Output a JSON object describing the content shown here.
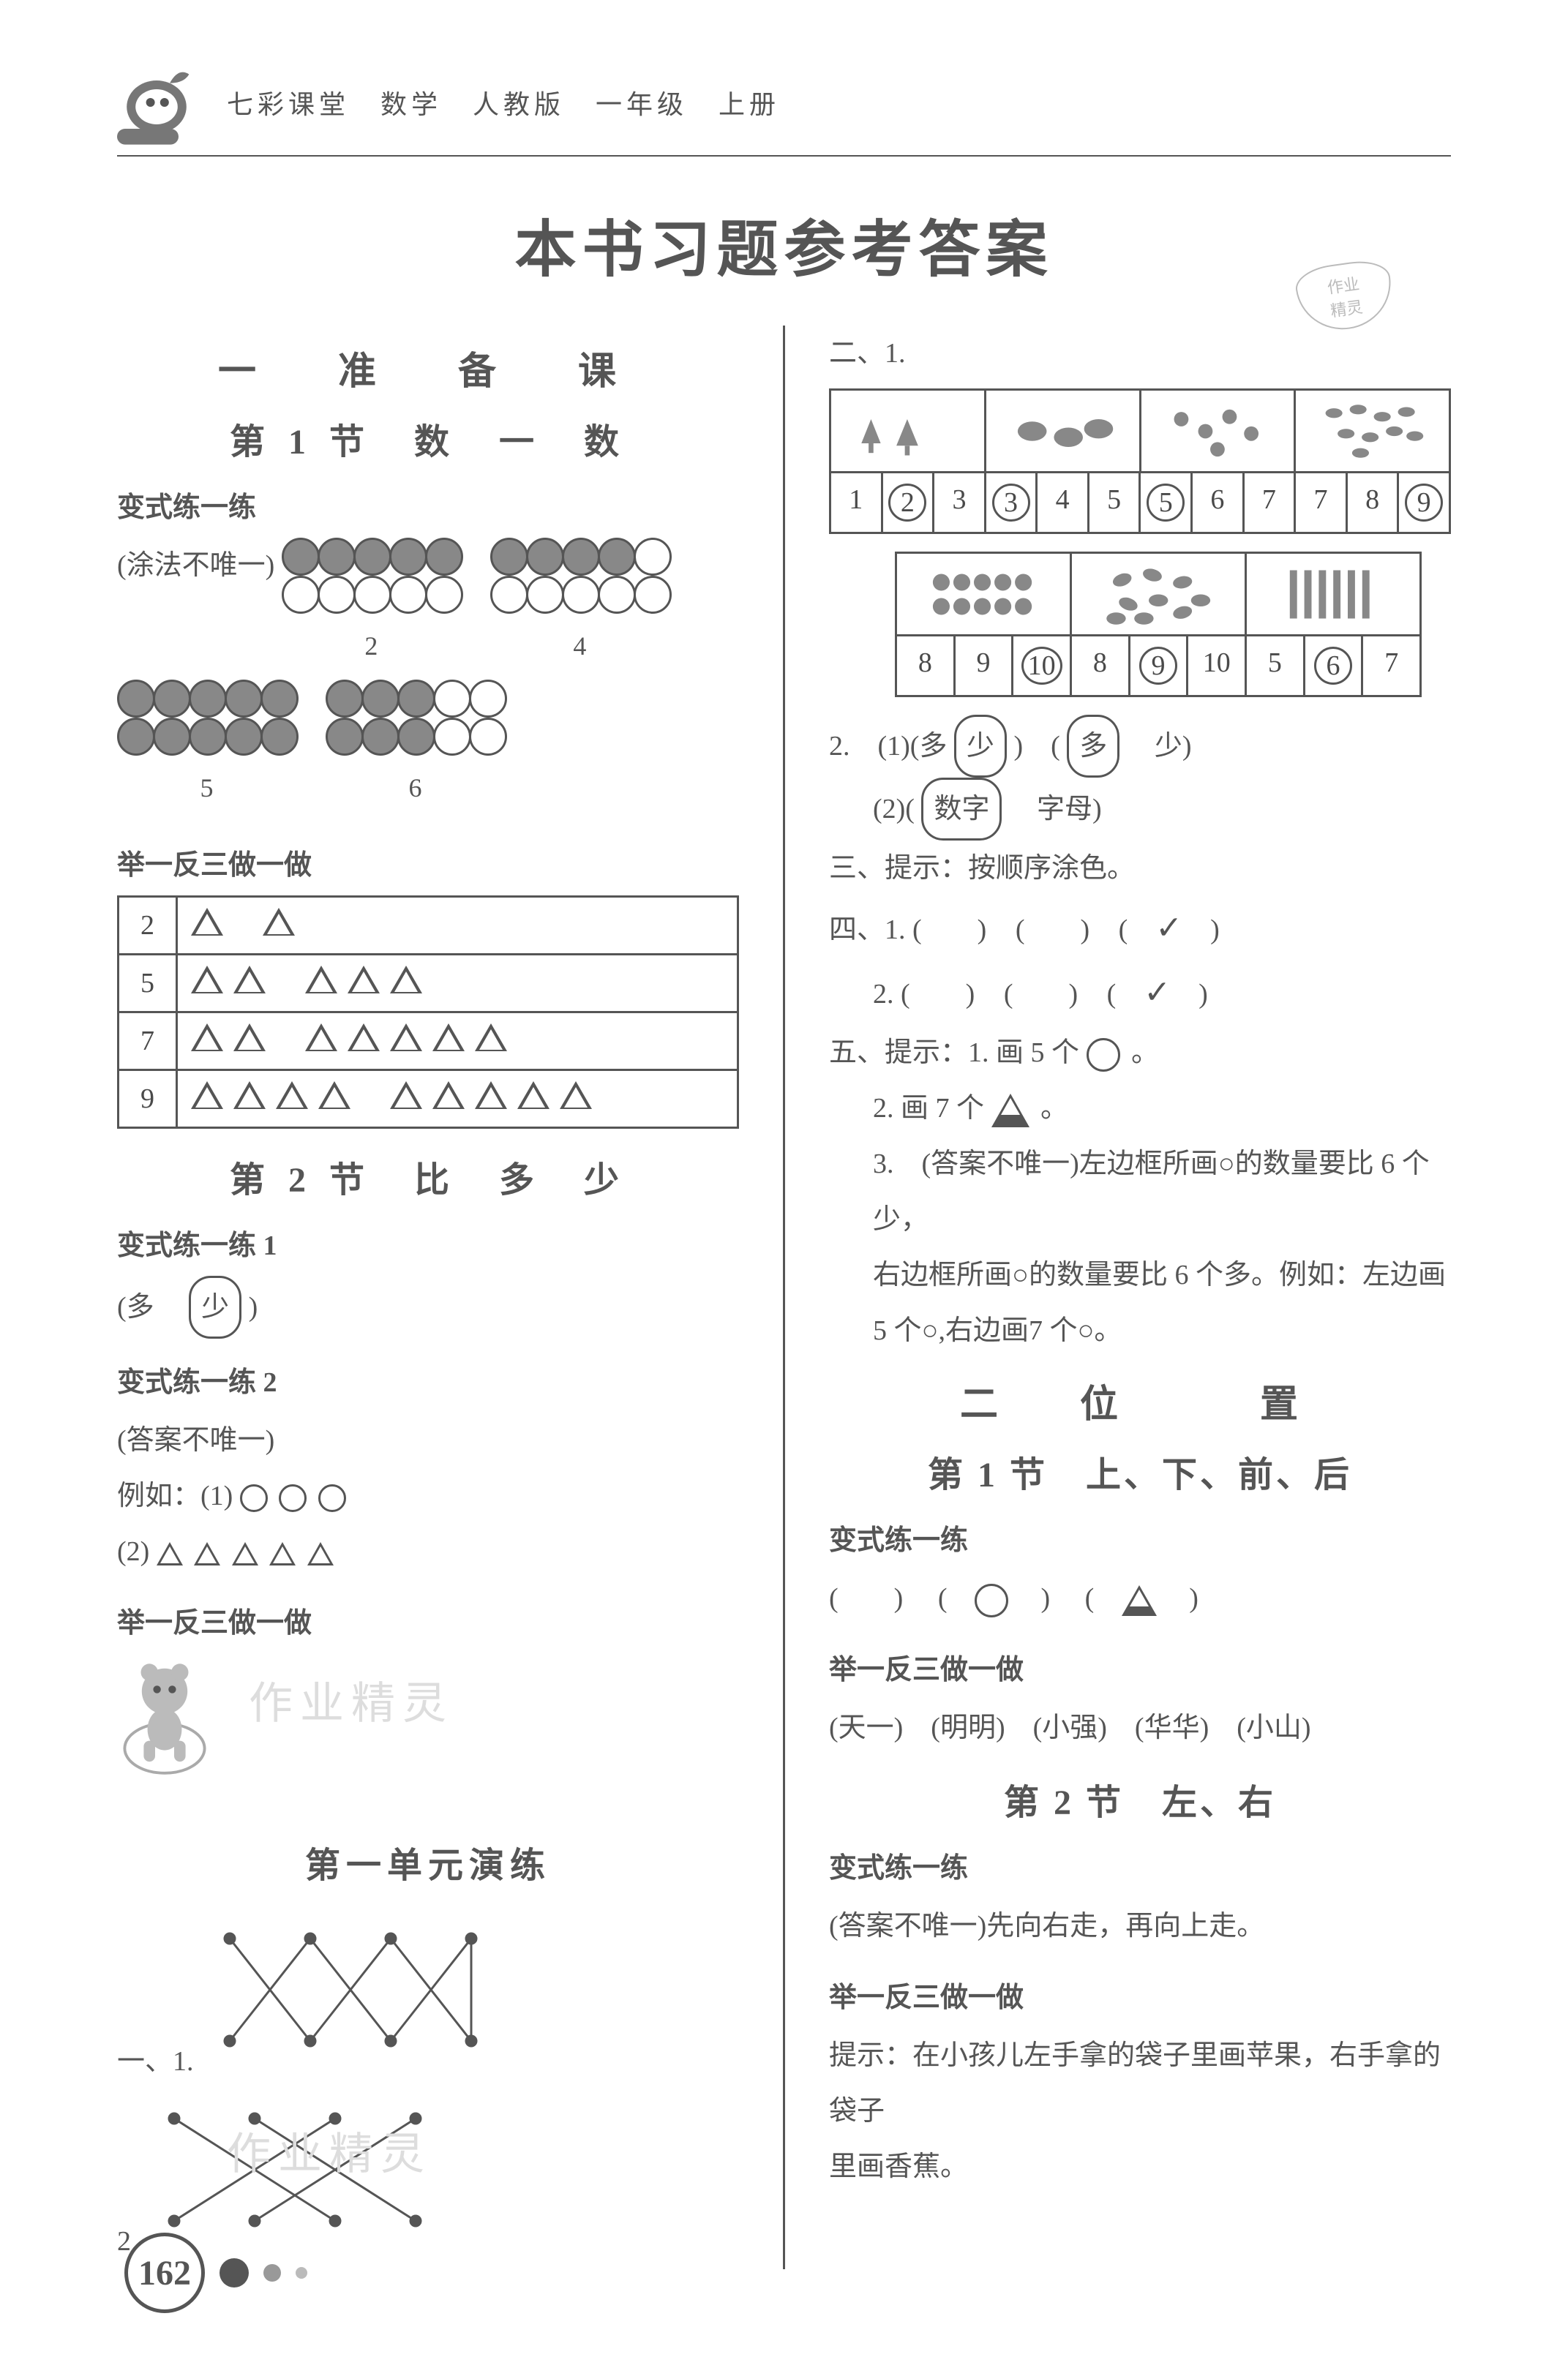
{
  "header": {
    "series": "七彩课堂　数学　人教版　一年级　上册"
  },
  "main_title": "本书习题参考答案",
  "stamp": {
    "line1": "作业",
    "line2": "精灵"
  },
  "left": {
    "chapter1": "一　准　备　课",
    "sec1": "第 1 节　数　一　数",
    "bianshi": "变式练一练",
    "tufa": "(涂法不唯一)",
    "circle_groups": [
      {
        "pattern": [
          [
            1,
            1,
            1,
            1,
            1
          ],
          [
            0,
            0,
            0,
            0,
            0
          ]
        ],
        "label": "2"
      },
      {
        "pattern": [
          [
            1,
            1,
            1,
            1,
            0
          ],
          [
            0,
            0,
            0,
            0,
            0
          ]
        ],
        "label": "4"
      },
      {
        "pattern": [
          [
            1,
            1,
            1,
            1,
            1
          ],
          [
            1,
            1,
            1,
            1,
            1
          ]
        ],
        "label": "5"
      },
      {
        "pattern": [
          [
            1,
            1,
            1,
            0,
            0
          ],
          [
            1,
            1,
            1,
            0,
            0
          ]
        ],
        "label": "6"
      }
    ],
    "juyi": "举一反三做一做",
    "tri_rows": [
      {
        "n": "2",
        "groups": [
          1,
          1
        ]
      },
      {
        "n": "5",
        "groups": [
          2,
          3
        ]
      },
      {
        "n": "7",
        "groups": [
          2,
          5
        ]
      },
      {
        "n": "9",
        "groups": [
          4,
          5
        ]
      }
    ],
    "sec2": "第 2 节　比　多　少",
    "bianshi1": "变式练一练 1",
    "duoshao": "(多　",
    "shao_circled": "少",
    "close_paren": ")",
    "bianshi2": "变式练一练 2",
    "ans_not_unique": "(答案不唯一)",
    "liru": "例如：(1)",
    "liru2": "(2)",
    "juyi2": "举一反三做一做",
    "watermark": "作业精灵",
    "unit1": "第一单元演练",
    "yi1": "一、1.",
    "yi2": "2."
  },
  "right": {
    "er1": "二、1.",
    "grid1": {
      "cells": 12,
      "nums": [
        "1",
        "2",
        "3",
        "3",
        "4",
        "5",
        "5",
        "6",
        "7",
        "7",
        "8",
        "9"
      ],
      "circled_idx": [
        1,
        3,
        6,
        11
      ]
    },
    "grid2": {
      "cells": 9,
      "nums": [
        "8",
        "9",
        "10",
        "8",
        "9",
        "10",
        "5",
        "6",
        "7"
      ],
      "circled_idx": [
        2,
        4,
        7
      ]
    },
    "q2_1_label": "2.　(1)(多",
    "q2_1_shao": "少",
    "q2_1_mid": ")　(",
    "q2_1_duo": "多",
    "q2_1_end": "　少)",
    "q2_2_label": "(2)(",
    "q2_2_shuzi": "数字",
    "q2_2_end": "　字母)",
    "san": "三、提示：按顺序涂色。",
    "si": "四、1.",
    "si2": "2.",
    "wu_label": "五、提示：1. 画 5 个",
    "wu_end": "。",
    "wu2": "2. 画 7 个",
    "wu2_end": "。",
    "wu3a": "3.　(答案不唯一)左边框所画○的数量要比 6 个少，",
    "wu3b": "右边框所画○的数量要比 6 个多。例如：左边画",
    "wu3c": "5 个○,右边画7 个○。",
    "chapter2": "二　位　　置",
    "sec2_1": "第 1 节　上、下、前、后",
    "bianshi_r": "变式练一练",
    "paren_shapes": "(　　)　(　○　)　(　△　)",
    "juyi_r": "举一反三做一做",
    "names": "(天一)　(明明)　(小强)　(华华)　(小山)",
    "sec2_2": "第 2 节　左、右",
    "bianshi_r2": "变式练一练",
    "ans_r2": "(答案不唯一)先向右走，再向上走。",
    "juyi_r2": "举一反三做一做",
    "hint_r2a": "提示：在小孩儿左手拿的袋子里画苹果，右手拿的袋子",
    "hint_r2b": "里画香蕉。"
  },
  "pagenum": "162"
}
